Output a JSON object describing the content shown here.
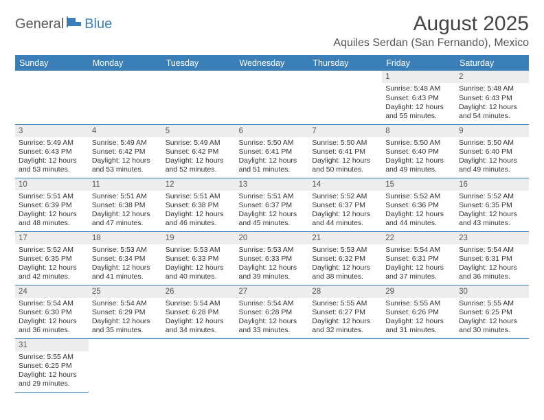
{
  "logo": {
    "part1": "General",
    "part2": "Blue"
  },
  "title": "August 2025",
  "location": "Aquiles Serdan (San Fernando), Mexico",
  "colors": {
    "header_bg": "#3a7fb8",
    "header_text": "#ffffff",
    "daynum_bg": "#ededed",
    "grid_line": "#3a7fb8",
    "body_text": "#333333",
    "logo_gray": "#595959",
    "logo_blue": "#3a7fb8"
  },
  "weekdays": [
    "Sunday",
    "Monday",
    "Tuesday",
    "Wednesday",
    "Thursday",
    "Friday",
    "Saturday"
  ],
  "first_weekday_index": 5,
  "days": [
    {
      "n": 1,
      "sunrise": "5:48 AM",
      "sunset": "6:43 PM",
      "daylight": "12 hours and 55 minutes."
    },
    {
      "n": 2,
      "sunrise": "5:48 AM",
      "sunset": "6:43 PM",
      "daylight": "12 hours and 54 minutes."
    },
    {
      "n": 3,
      "sunrise": "5:49 AM",
      "sunset": "6:43 PM",
      "daylight": "12 hours and 53 minutes."
    },
    {
      "n": 4,
      "sunrise": "5:49 AM",
      "sunset": "6:42 PM",
      "daylight": "12 hours and 53 minutes."
    },
    {
      "n": 5,
      "sunrise": "5:49 AM",
      "sunset": "6:42 PM",
      "daylight": "12 hours and 52 minutes."
    },
    {
      "n": 6,
      "sunrise": "5:50 AM",
      "sunset": "6:41 PM",
      "daylight": "12 hours and 51 minutes."
    },
    {
      "n": 7,
      "sunrise": "5:50 AM",
      "sunset": "6:41 PM",
      "daylight": "12 hours and 50 minutes."
    },
    {
      "n": 8,
      "sunrise": "5:50 AM",
      "sunset": "6:40 PM",
      "daylight": "12 hours and 49 minutes."
    },
    {
      "n": 9,
      "sunrise": "5:50 AM",
      "sunset": "6:40 PM",
      "daylight": "12 hours and 49 minutes."
    },
    {
      "n": 10,
      "sunrise": "5:51 AM",
      "sunset": "6:39 PM",
      "daylight": "12 hours and 48 minutes."
    },
    {
      "n": 11,
      "sunrise": "5:51 AM",
      "sunset": "6:38 PM",
      "daylight": "12 hours and 47 minutes."
    },
    {
      "n": 12,
      "sunrise": "5:51 AM",
      "sunset": "6:38 PM",
      "daylight": "12 hours and 46 minutes."
    },
    {
      "n": 13,
      "sunrise": "5:51 AM",
      "sunset": "6:37 PM",
      "daylight": "12 hours and 45 minutes."
    },
    {
      "n": 14,
      "sunrise": "5:52 AM",
      "sunset": "6:37 PM",
      "daylight": "12 hours and 44 minutes."
    },
    {
      "n": 15,
      "sunrise": "5:52 AM",
      "sunset": "6:36 PM",
      "daylight": "12 hours and 44 minutes."
    },
    {
      "n": 16,
      "sunrise": "5:52 AM",
      "sunset": "6:35 PM",
      "daylight": "12 hours and 43 minutes."
    },
    {
      "n": 17,
      "sunrise": "5:52 AM",
      "sunset": "6:35 PM",
      "daylight": "12 hours and 42 minutes."
    },
    {
      "n": 18,
      "sunrise": "5:53 AM",
      "sunset": "6:34 PM",
      "daylight": "12 hours and 41 minutes."
    },
    {
      "n": 19,
      "sunrise": "5:53 AM",
      "sunset": "6:33 PM",
      "daylight": "12 hours and 40 minutes."
    },
    {
      "n": 20,
      "sunrise": "5:53 AM",
      "sunset": "6:33 PM",
      "daylight": "12 hours and 39 minutes."
    },
    {
      "n": 21,
      "sunrise": "5:53 AM",
      "sunset": "6:32 PM",
      "daylight": "12 hours and 38 minutes."
    },
    {
      "n": 22,
      "sunrise": "5:54 AM",
      "sunset": "6:31 PM",
      "daylight": "12 hours and 37 minutes."
    },
    {
      "n": 23,
      "sunrise": "5:54 AM",
      "sunset": "6:31 PM",
      "daylight": "12 hours and 36 minutes."
    },
    {
      "n": 24,
      "sunrise": "5:54 AM",
      "sunset": "6:30 PM",
      "daylight": "12 hours and 36 minutes."
    },
    {
      "n": 25,
      "sunrise": "5:54 AM",
      "sunset": "6:29 PM",
      "daylight": "12 hours and 35 minutes."
    },
    {
      "n": 26,
      "sunrise": "5:54 AM",
      "sunset": "6:28 PM",
      "daylight": "12 hours and 34 minutes."
    },
    {
      "n": 27,
      "sunrise": "5:54 AM",
      "sunset": "6:28 PM",
      "daylight": "12 hours and 33 minutes."
    },
    {
      "n": 28,
      "sunrise": "5:55 AM",
      "sunset": "6:27 PM",
      "daylight": "12 hours and 32 minutes."
    },
    {
      "n": 29,
      "sunrise": "5:55 AM",
      "sunset": "6:26 PM",
      "daylight": "12 hours and 31 minutes."
    },
    {
      "n": 30,
      "sunrise": "5:55 AM",
      "sunset": "6:25 PM",
      "daylight": "12 hours and 30 minutes."
    },
    {
      "n": 31,
      "sunrise": "5:55 AM",
      "sunset": "6:25 PM",
      "daylight": "12 hours and 29 minutes."
    }
  ],
  "labels": {
    "sunrise": "Sunrise:",
    "sunset": "Sunset:",
    "daylight": "Daylight:"
  }
}
